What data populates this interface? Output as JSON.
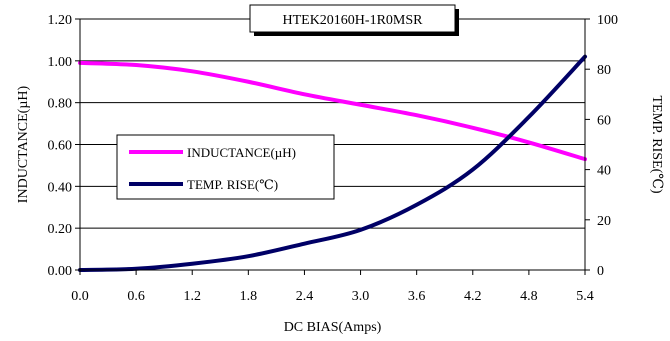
{
  "chart_data": {
    "type": "line",
    "title": "HTEK20160H-1R0MSR",
    "xlabel": "DC BIAS(Amps)",
    "ylabel_left": "INDUCTANCE(µH)",
    "ylabel_right": "TEMP. RISE(℃)",
    "xlim": [
      0,
      5.4
    ],
    "ylim_left": [
      0,
      1.2
    ],
    "ylim_right": [
      0,
      100
    ],
    "x_ticks": [
      "0.0",
      "0.6",
      "1.2",
      "1.8",
      "2.4",
      "3.0",
      "3.6",
      "4.2",
      "4.8",
      "5.4"
    ],
    "y_left_ticks": [
      "0.00",
      "0.20",
      "0.40",
      "0.60",
      "0.80",
      "1.00",
      "1.20"
    ],
    "y_right_ticks": [
      "0",
      "20",
      "40",
      "60",
      "80",
      "100"
    ],
    "grid": "horizontal",
    "legend_position": "center-left",
    "series": [
      {
        "name": "INDUCTANCE(µH)",
        "axis": "left",
        "color": "#ff00ff",
        "x": [
          0,
          0.6,
          1.2,
          1.8,
          2.4,
          3.0,
          3.6,
          4.2,
          4.8,
          5.4
        ],
        "y": [
          0.99,
          0.98,
          0.95,
          0.9,
          0.84,
          0.79,
          0.74,
          0.68,
          0.61,
          0.53
        ]
      },
      {
        "name": "TEMP. RISE(℃)",
        "axis": "right",
        "color": "#000066",
        "x": [
          0,
          0.6,
          1.2,
          1.8,
          2.4,
          3.0,
          3.6,
          4.2,
          4.8,
          5.4
        ],
        "y": [
          0,
          0.5,
          2.5,
          5.5,
          10.5,
          16,
          26,
          40,
          61,
          85
        ]
      }
    ]
  }
}
